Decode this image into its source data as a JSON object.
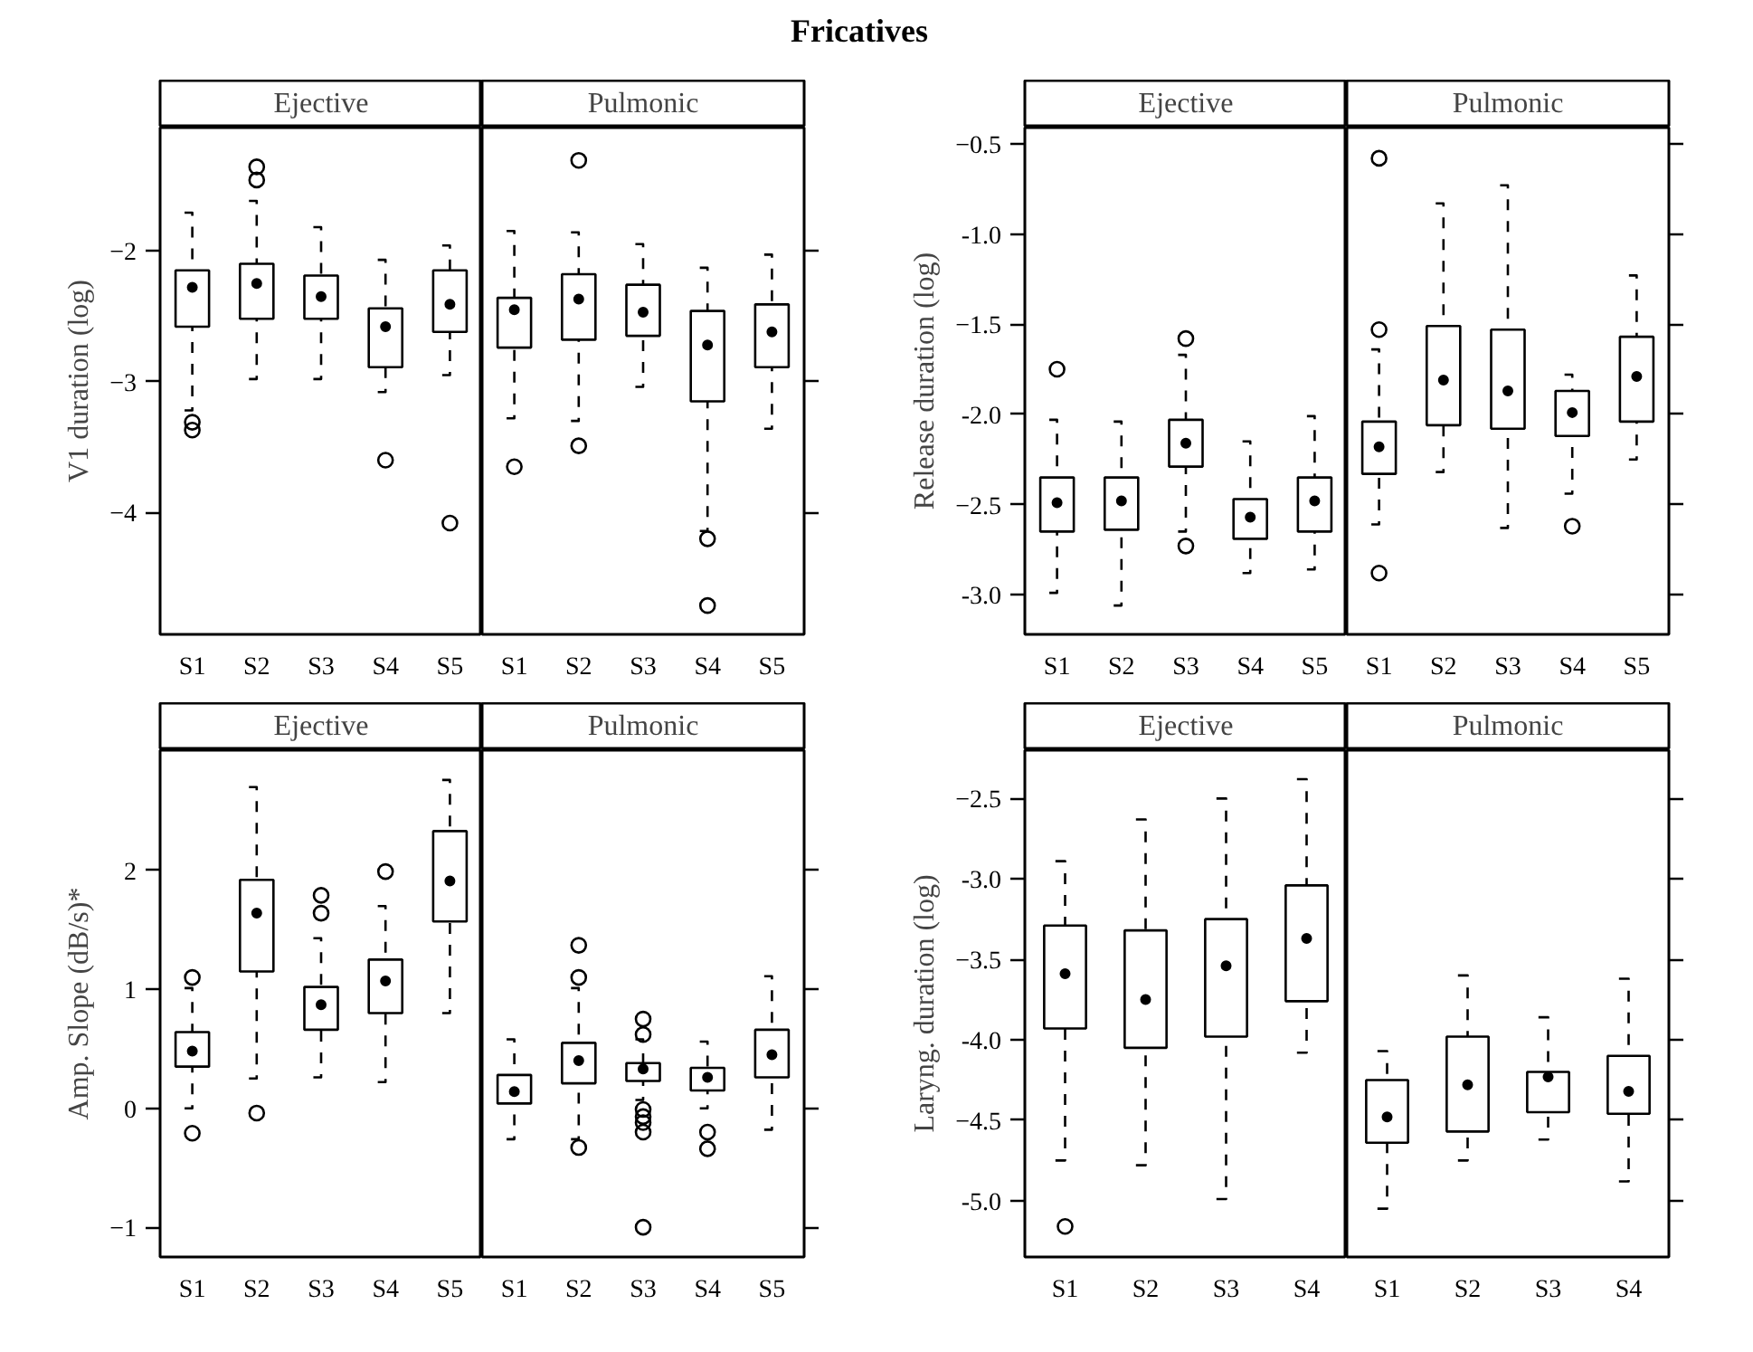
{
  "chart_data": [
    {
      "type": "box",
      "annotations": [
        "Fricatives"
      ],
      "title": "Ejective",
      "ylabel": "V1 duration (log)",
      "categories": [
        "S1",
        "S2",
        "S3",
        "S4",
        "S5"
      ],
      "ylim": [
        -4.93,
        -1.06
      ],
      "yticks": [
        -2,
        -3,
        -4
      ],
      "boxes": [
        {
          "low": -3.22,
          "q1": -2.58,
          "median": -2.28,
          "q3": -2.15,
          "high": -1.71,
          "outliers": [
            -3.31,
            -3.37
          ]
        },
        {
          "low": -2.98,
          "q1": -2.52,
          "median": -2.25,
          "q3": -2.1,
          "high": -1.62,
          "outliers": [
            -1.36,
            -1.46
          ]
        },
        {
          "low": -2.98,
          "q1": -2.52,
          "median": -2.35,
          "q3": -2.19,
          "high": -1.82
        },
        {
          "low": -3.08,
          "q1": -2.89,
          "median": -2.58,
          "q3": -2.44,
          "high": -2.07,
          "outliers": [
            -3.6
          ]
        },
        {
          "low": -2.95,
          "q1": -2.62,
          "median": -2.41,
          "q3": -2.15,
          "high": -1.96,
          "outliers": [
            -4.08
          ]
        }
      ]
    },
    {
      "type": "box",
      "title": "Pulmonic",
      "tick_labels": "x",
      "categories": [
        "S1",
        "S2",
        "S3",
        "S4",
        "S5"
      ],
      "ylim": [
        -4.93,
        -1.06
      ],
      "yticks": [
        -2,
        -3,
        -4
      ],
      "boxes": [
        {
          "low": -3.28,
          "q1": -2.74,
          "median": -2.45,
          "q3": -2.36,
          "high": -1.85,
          "outliers": [
            -3.65
          ]
        },
        {
          "low": -3.3,
          "q1": -2.68,
          "median": -2.37,
          "q3": -2.18,
          "high": -1.86,
          "outliers": [
            -1.31,
            -3.49
          ]
        },
        {
          "low": -3.04,
          "q1": -2.65,
          "median": -2.47,
          "q3": -2.26,
          "high": -1.95
        },
        {
          "low": -4.14,
          "q1": -3.15,
          "median": -2.72,
          "q3": -2.46,
          "high": -2.13,
          "outliers": [
            -4.2,
            -4.71
          ]
        },
        {
          "low": -3.36,
          "q1": -2.89,
          "median": -2.62,
          "q3": -2.41,
          "high": -2.03
        }
      ]
    },
    {
      "type": "box",
      "title": "Ejective",
      "ylabel": "Release duration (log)",
      "categories": [
        "S1",
        "S2",
        "S3",
        "S4",
        "S5"
      ],
      "ylim": [
        -3.22,
        -0.41
      ],
      "yticks": [
        -0.5,
        {
          "value": -1,
          "label": "-1.0"
        },
        -1.5,
        {
          "value": -2,
          "label": "-2.0"
        },
        -2.5,
        {
          "value": -3,
          "label": "-3.0"
        }
      ],
      "boxes": [
        {
          "low": -2.99,
          "q1": -2.65,
          "median": -2.49,
          "q3": -2.35,
          "high": -2.03,
          "outliers": [
            -1.75
          ]
        },
        {
          "low": -3.06,
          "q1": -2.64,
          "median": -2.48,
          "q3": -2.35,
          "high": -2.04
        },
        {
          "low": -2.65,
          "q1": -2.29,
          "median": -2.16,
          "q3": -2.03,
          "high": -1.67,
          "outliers": [
            -1.58,
            -2.73
          ]
        },
        {
          "low": -2.88,
          "q1": -2.69,
          "median": -2.57,
          "q3": -2.47,
          "high": -2.15
        },
        {
          "low": -2.86,
          "q1": -2.65,
          "median": -2.48,
          "q3": -2.35,
          "high": -2.01
        }
      ]
    },
    {
      "type": "box",
      "title": "Pulmonic",
      "tick_labels": "x",
      "categories": [
        "S1",
        "S2",
        "S3",
        "S4",
        "S5"
      ],
      "ylim": [
        -3.22,
        -0.41
      ],
      "yticks": [
        -0.5,
        -1,
        -1.5,
        -2,
        -2.5,
        -3
      ],
      "boxes": [
        {
          "low": -2.61,
          "q1": -2.33,
          "median": -2.18,
          "q3": -2.04,
          "high": -1.64,
          "outliers": [
            -0.58,
            -1.53,
            -2.88
          ]
        },
        {
          "low": -2.32,
          "q1": -2.06,
          "median": -1.81,
          "q3": -1.51,
          "high": -0.83
        },
        {
          "low": -2.63,
          "q1": -2.08,
          "median": -1.87,
          "q3": -1.53,
          "high": -0.73
        },
        {
          "low": -2.44,
          "q1": -2.12,
          "median": -1.99,
          "q3": -1.87,
          "high": -1.78,
          "outliers": [
            -2.62
          ]
        },
        {
          "low": -2.25,
          "q1": -2.04,
          "median": -1.79,
          "q3": -1.57,
          "high": -1.23
        }
      ]
    },
    {
      "type": "box",
      "title": "Ejective",
      "ylabel": "Amp. Slope (dB/s)*",
      "categories": [
        "S1",
        "S2",
        "S3",
        "S4",
        "S5"
      ],
      "ylim": [
        -1.25,
        3.01
      ],
      "yticks": [
        -1,
        0,
        1,
        2
      ],
      "boxes": [
        {
          "low": 0.0,
          "q1": 0.35,
          "median": 0.48,
          "q3": 0.64,
          "high": 1.01,
          "outliers": [
            1.1,
            -0.21
          ]
        },
        {
          "low": 0.25,
          "q1": 1.15,
          "median": 1.64,
          "q3": 1.92,
          "high": 2.7,
          "outliers": [
            -0.04
          ]
        },
        {
          "low": 0.26,
          "q1": 0.66,
          "median": 0.87,
          "q3": 1.02,
          "high": 1.43,
          "outliers": [
            1.79,
            1.64
          ]
        },
        {
          "low": 0.22,
          "q1": 0.8,
          "median": 1.07,
          "q3": 1.25,
          "high": 1.7,
          "outliers": [
            1.99
          ]
        },
        {
          "low": 0.8,
          "q1": 1.57,
          "median": 1.91,
          "q3": 2.33,
          "high": 2.76
        }
      ]
    },
    {
      "type": "box",
      "title": "Pulmonic",
      "tick_labels": "x",
      "categories": [
        "S1",
        "S2",
        "S3",
        "S4",
        "S5"
      ],
      "ylim": [
        -1.25,
        3.01
      ],
      "yticks": [
        -1,
        0,
        1,
        2
      ],
      "boxes": [
        {
          "low": -0.26,
          "q1": 0.04,
          "median": 0.14,
          "q3": 0.28,
          "high": 0.58
        },
        {
          "low": -0.26,
          "q1": 0.21,
          "median": 0.4,
          "q3": 0.55,
          "high": 1.01,
          "outliers": [
            1.37,
            1.1,
            -0.33
          ]
        },
        {
          "low": 0.07,
          "q1": 0.23,
          "median": 0.33,
          "q3": 0.38,
          "high": 0.58,
          "outliers": [
            0.75,
            0.62,
            -0.01,
            -0.07,
            -0.12,
            -0.2,
            -1.0
          ]
        },
        {
          "low": 0.0,
          "q1": 0.15,
          "median": 0.26,
          "q3": 0.34,
          "high": 0.56,
          "outliers": [
            -0.2,
            -0.34
          ]
        },
        {
          "low": -0.18,
          "q1": 0.26,
          "median": 0.45,
          "q3": 0.66,
          "high": 1.11
        }
      ]
    },
    {
      "type": "box",
      "title": "Ejective",
      "ylabel": "Laryng. duration (log)",
      "categories": [
        "S1",
        "S2",
        "S3",
        "S4"
      ],
      "ylim": [
        -5.35,
        -2.2
      ],
      "yticks": [
        -2.5,
        {
          "value": -3,
          "label": "-3.0"
        },
        -3.5,
        {
          "value": -4,
          "label": "-4.0"
        },
        -4.5,
        {
          "value": -5,
          "label": "-5.0"
        }
      ],
      "boxes": [
        {
          "low": -4.75,
          "q1": -3.93,
          "median": -3.59,
          "q3": -3.29,
          "high": -2.89,
          "outliers": [
            -5.16
          ]
        },
        {
          "low": -4.78,
          "q1": -4.05,
          "median": -3.75,
          "q3": -3.32,
          "high": -2.63
        },
        {
          "low": -4.99,
          "q1": -3.98,
          "median": -3.54,
          "q3": -3.25,
          "high": -2.5
        },
        {
          "low": -4.08,
          "q1": -3.76,
          "median": -3.37,
          "q3": -3.04,
          "high": -2.38
        }
      ]
    },
    {
      "type": "box",
      "title": "Pulmonic",
      "tick_labels": "x",
      "categories": [
        "S1",
        "S2",
        "S3",
        "S4"
      ],
      "ylim": [
        -5.35,
        -2.2
      ],
      "yticks": [
        -2.5,
        -3,
        -3.5,
        -4,
        -4.5,
        -5
      ],
      "boxes": [
        {
          "low": -5.05,
          "q1": -4.64,
          "median": -4.48,
          "q3": -4.25,
          "high": -4.07
        },
        {
          "low": -4.75,
          "q1": -4.57,
          "median": -4.28,
          "q3": -3.98,
          "high": -3.6
        },
        {
          "low": -4.62,
          "q1": -4.45,
          "median": -4.23,
          "q3": -4.2,
          "high": -3.86
        },
        {
          "low": -4.88,
          "q1": -4.46,
          "median": -4.32,
          "q3": -4.1,
          "high": -3.62
        }
      ]
    }
  ]
}
